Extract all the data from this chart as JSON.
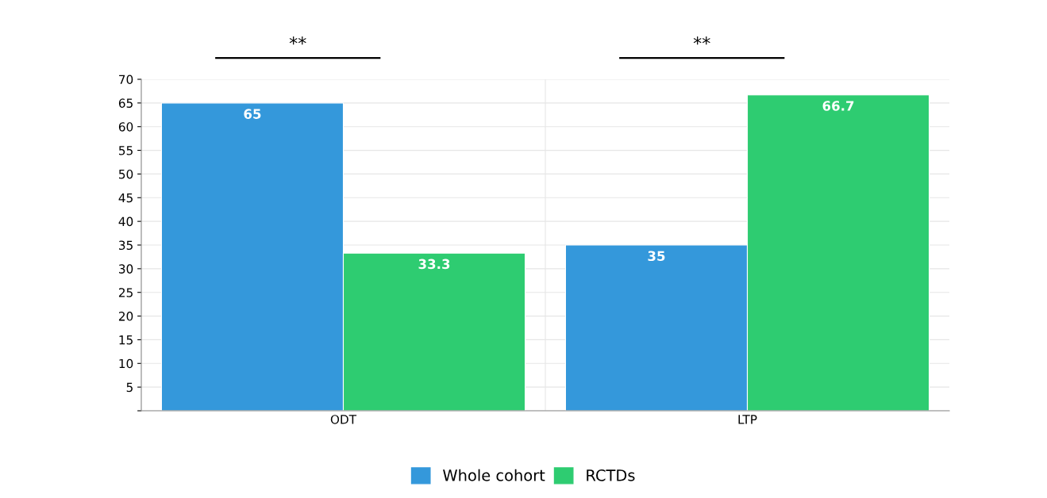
{
  "chart_data": {
    "type": "bar",
    "categories": [
      "ODT",
      "LTP"
    ],
    "series": [
      {
        "name": "Whole cohort",
        "color": "#3498db",
        "values": [
          65,
          35
        ]
      },
      {
        "name": "RCTDs",
        "color": "#2ecc71",
        "values": [
          33.3,
          66.7
        ]
      }
    ],
    "ylim": [
      0,
      70
    ],
    "yticks": [
      {
        "value": 0,
        "label": null
      },
      5,
      10,
      15,
      20,
      25,
      30,
      35,
      40,
      45,
      50,
      55,
      60,
      65,
      70
    ],
    "grid": "y",
    "legend": "bottom",
    "data_labels": true,
    "annotations": [
      "**",
      "**"
    ]
  }
}
